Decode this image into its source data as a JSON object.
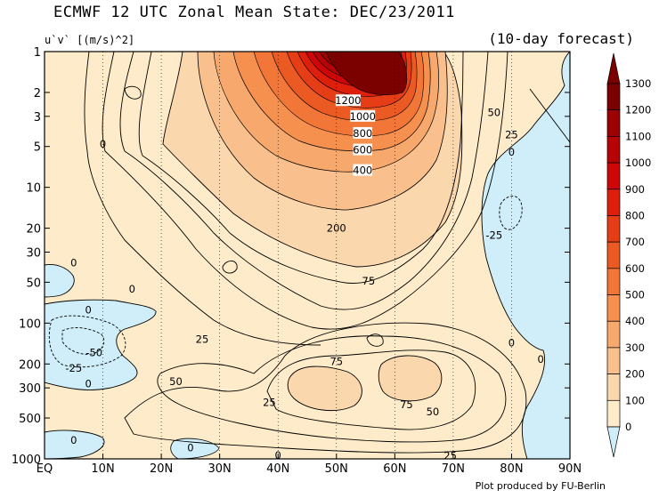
{
  "title": "ECMWF 12 UTC Zonal Mean State: DEC/23/2011",
  "units": "u`v` [(m/s)^2]",
  "forecast": "(10-day forecast)",
  "credit": "Plot produced by FU-Berlin",
  "chart_data": {
    "type": "contour",
    "variable": "u'v' zonal mean momentum flux",
    "x_ticks": [
      "EQ",
      "10N",
      "20N",
      "30N",
      "40N",
      "50N",
      "60N",
      "70N",
      "80N",
      "90N"
    ],
    "x_range": [
      0,
      90
    ],
    "y_ticks": [
      "1",
      "2",
      "3",
      "5",
      "10",
      "20",
      "30",
      "50",
      "100",
      "200",
      "300",
      "500",
      "1000"
    ],
    "y_range": [
      1,
      1000
    ],
    "y_scale": "log (inverted, pressure)",
    "grid": "dotted vertical at each 10 degrees",
    "colorbar_ticks": [
      "1300",
      "1200",
      "1100",
      "1000",
      "900",
      "800",
      "700",
      "600",
      "500",
      "400",
      "300",
      "200",
      "100",
      "0"
    ],
    "colors": {
      "negative": "#cfeefa",
      "0-100": "#fdebc9",
      "100-200": "#fbd7ae",
      "200-300": "#f9c08d",
      "300-400": "#f7a86c",
      "400-500": "#f5904f",
      "500-600": "#f17637",
      "600-700": "#ec5a24",
      "700-800": "#e53d16",
      "800-900": "#dd1f0c",
      "900-1000": "#cf0608",
      "1000-1100": "#b60406",
      "1100-1200": "#9a0203",
      "1200-1300": "#7b0000"
    },
    "contour_labels": [
      {
        "text": "1200",
        "lat": 52.0,
        "p": 2.3
      },
      {
        "text": "1000",
        "lat": 54.5,
        "p": 3.0
      },
      {
        "text": "800",
        "lat": 54.5,
        "p": 4.0
      },
      {
        "text": "600",
        "lat": 54.5,
        "p": 5.3
      },
      {
        "text": "400",
        "lat": 54.5,
        "p": 7.5
      },
      {
        "text": "200",
        "lat": 50.0,
        "p": 20
      },
      {
        "text": "75",
        "lat": 55.5,
        "p": 49
      },
      {
        "text": "75",
        "lat": 50.0,
        "p": 192
      },
      {
        "text": "75",
        "lat": 62.0,
        "p": 400
      },
      {
        "text": "50",
        "lat": 77.0,
        "p": 2.8
      },
      {
        "text": "50",
        "lat": 22.5,
        "p": 270
      },
      {
        "text": "50",
        "lat": 66.5,
        "p": 450
      },
      {
        "text": "25",
        "lat": 80.0,
        "p": 4.1
      },
      {
        "text": "25",
        "lat": 27.0,
        "p": 132
      },
      {
        "text": "25",
        "lat": 38.5,
        "p": 385
      },
      {
        "text": "25",
        "lat": 69.5,
        "p": 950
      },
      {
        "text": "-25",
        "lat": 77.0,
        "p": 22.5
      },
      {
        "text": "-25",
        "lat": 5.0,
        "p": 215
      },
      {
        "text": "-50",
        "lat": 8.5,
        "p": 165
      },
      {
        "text": "0",
        "lat": 10.0,
        "p": 4.8
      },
      {
        "text": "0",
        "lat": 80.0,
        "p": 5.5
      },
      {
        "text": "0",
        "lat": 5.0,
        "p": 36
      },
      {
        "text": "0",
        "lat": 15.0,
        "p": 56
      },
      {
        "text": "0",
        "lat": 7.5,
        "p": 80
      },
      {
        "text": "0",
        "lat": 80.0,
        "p": 140
      },
      {
        "text": "0",
        "lat": 85.0,
        "p": 185
      },
      {
        "text": "0",
        "lat": 7.5,
        "p": 280
      },
      {
        "text": "0",
        "lat": 5.0,
        "p": 730
      },
      {
        "text": "0",
        "lat": 25.0,
        "p": 830
      },
      {
        "text": "0",
        "lat": 40.0,
        "p": 940
      }
    ]
  }
}
